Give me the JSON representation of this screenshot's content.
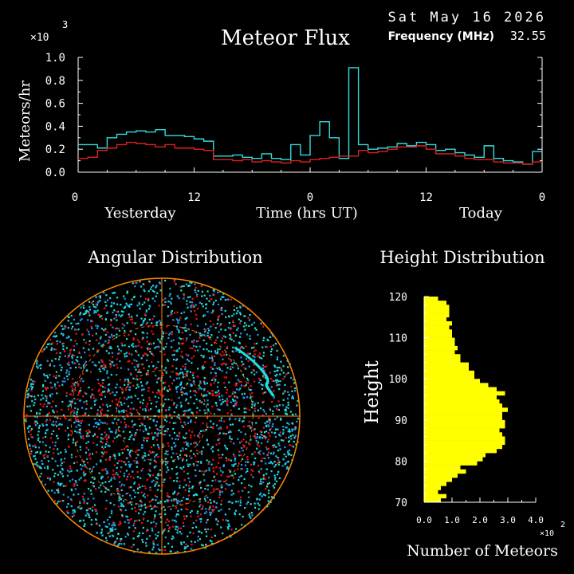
{
  "header": {
    "date": "Sat May 16 2026",
    "frequency_label": "Frequency (MHz)",
    "frequency_value": "32.55",
    "multiplier_base": "×10",
    "multiplier_exp": "3"
  },
  "colors": {
    "background": "#000000",
    "text": "#ffffff",
    "flux_cyan": "#33dddd",
    "flux_red": "#dd2222",
    "sky_cyan": "#22dddd",
    "sky_blue": "#2299ee",
    "sky_red": "#ee1111",
    "grid_orange": "#ff8800",
    "histogram_yellow": "#ffff00"
  },
  "chart_data": [
    {
      "type": "line",
      "title": "Meteor Flux",
      "ylabel": "Meteors/hr",
      "xlabel": "Time (hrs UT)",
      "day_labels": [
        "Yesterday",
        "Today"
      ],
      "x_tick_labels": [
        "0",
        "12",
        "0",
        "12",
        "0"
      ],
      "y_tick_labels": [
        "0.0",
        "0.2",
        "0.4",
        "0.6",
        "0.8",
        "1.0"
      ],
      "ylim": [
        0,
        1.0
      ],
      "xlim": [
        0,
        48
      ],
      "grid": false,
      "series": [
        {
          "color": "cyan",
          "values": [
            0.24,
            0.24,
            0.21,
            0.3,
            0.33,
            0.35,
            0.36,
            0.35,
            0.37,
            0.32,
            0.32,
            0.31,
            0.29,
            0.27,
            0.14,
            0.14,
            0.15,
            0.13,
            0.12,
            0.16,
            0.12,
            0.11,
            0.24,
            0.15,
            0.32,
            0.44,
            0.3,
            0.12,
            0.91,
            0.24,
            0.2,
            0.21,
            0.22,
            0.25,
            0.23,
            0.26,
            0.24,
            0.19,
            0.2,
            0.17,
            0.15,
            0.13,
            0.23,
            0.12,
            0.1,
            0.09,
            0.07,
            0.18
          ]
        },
        {
          "color": "red",
          "values": [
            0.12,
            0.13,
            0.19,
            0.21,
            0.24,
            0.26,
            0.25,
            0.24,
            0.22,
            0.24,
            0.21,
            0.21,
            0.2,
            0.19,
            0.11,
            0.11,
            0.1,
            0.11,
            0.09,
            0.1,
            0.09,
            0.08,
            0.1,
            0.09,
            0.11,
            0.12,
            0.13,
            0.14,
            0.14,
            0.19,
            0.17,
            0.18,
            0.2,
            0.22,
            0.22,
            0.23,
            0.2,
            0.16,
            0.16,
            0.14,
            0.12,
            0.11,
            0.11,
            0.09,
            0.08,
            0.08,
            0.07,
            0.09
          ]
        }
      ]
    },
    {
      "type": "scatter",
      "title": "Angular Distribution",
      "description_type": "all-sky polar scatter",
      "grid": true,
      "point_colors": [
        "cyan",
        "blue",
        "red"
      ]
    },
    {
      "type": "bar",
      "orientation": "horizontal",
      "title": "Height Distribution",
      "ylabel": "Height",
      "xlabel": "Number of Meteors",
      "x_multiplier_base": "×10",
      "x_multiplier_exp": "2",
      "y_tick_labels": [
        "70",
        "80",
        "90",
        "100",
        "110",
        "120"
      ],
      "x_tick_labels": [
        "0.0",
        "1.0",
        "2.0",
        "3.0",
        "4.0"
      ],
      "ylim": [
        70,
        120
      ],
      "xlim": [
        0,
        4.0
      ],
      "heights": [
        71,
        72,
        73,
        74,
        75,
        76,
        77,
        78,
        79,
        80,
        81,
        82,
        83,
        84,
        85,
        86,
        87,
        88,
        89,
        90,
        91,
        92,
        93,
        94,
        95,
        96,
        97,
        98,
        99,
        100,
        101,
        102,
        103,
        104,
        105,
        106,
        107,
        108,
        109,
        110,
        111,
        112,
        113,
        114,
        115,
        116,
        117,
        118,
        119,
        120
      ],
      "values": [
        0.6,
        0.8,
        0.5,
        0.6,
        0.8,
        1.0,
        1.2,
        1.5,
        1.3,
        1.9,
        2.1,
        2.2,
        2.6,
        2.8,
        2.9,
        2.9,
        2.8,
        2.7,
        2.9,
        2.9,
        2.8,
        2.8,
        3.0,
        2.8,
        2.7,
        2.6,
        2.9,
        2.6,
        2.3,
        2.0,
        1.8,
        1.8,
        1.6,
        1.6,
        1.3,
        1.3,
        1.1,
        1.2,
        1.1,
        1.1,
        1.0,
        1.0,
        0.9,
        1.0,
        0.8,
        0.9,
        0.9,
        0.9,
        0.8,
        0.5
      ]
    }
  ]
}
